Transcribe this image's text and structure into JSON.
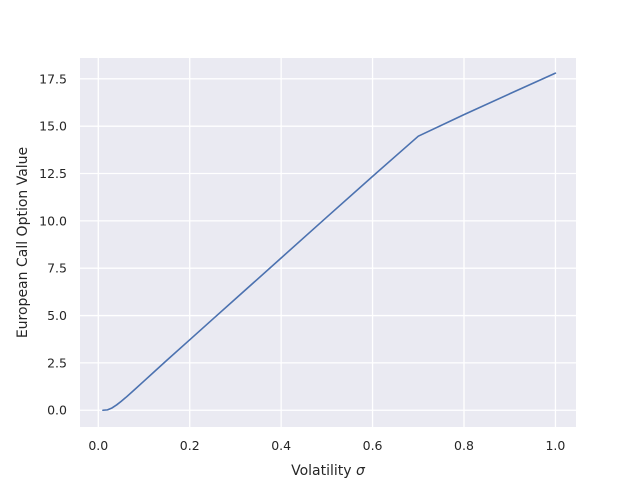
{
  "chart_data": {
    "type": "line",
    "title": "",
    "xlabel": "Volatility",
    "xlabel_symbol": "σ",
    "ylabel": "European Call Option Value",
    "xlim": [
      -0.04,
      1.045
    ],
    "ylim": [
      -0.885,
      18.6
    ],
    "xticks": [
      0.0,
      0.2,
      0.4,
      0.6,
      0.8,
      1.0
    ],
    "xtick_labels": [
      "0.0",
      "0.2",
      "0.4",
      "0.6",
      "0.8",
      "1.0"
    ],
    "yticks": [
      0.0,
      2.5,
      5.0,
      7.5,
      10.0,
      12.5,
      15.0,
      17.5
    ],
    "ytick_labels": [
      "0.0",
      "2.5",
      "5.0",
      "7.5",
      "10.0",
      "12.5",
      "15.0",
      "17.5"
    ],
    "grid": true,
    "legend": "none",
    "colors": {
      "plot_bg": "#eaeaf2",
      "grid": "#ffffff",
      "line": "#4c72b0"
    },
    "series": [
      {
        "x": [
          0.01,
          0.02,
          0.03,
          0.04,
          0.05,
          0.06,
          0.08,
          0.1,
          0.12,
          0.15,
          0.2,
          0.25,
          0.3,
          0.4,
          0.5,
          0.6,
          0.7,
          0.8,
          0.9,
          1.0
        ],
        "values": [
          0.0,
          0.02,
          0.12,
          0.28,
          0.47,
          0.67,
          1.1,
          1.54,
          1.98,
          2.64,
          3.72,
          4.8,
          5.88,
          8.04,
          10.2,
          12.35,
          14.47,
          15.61,
          16.71,
          17.8
        ]
      }
    ]
  }
}
